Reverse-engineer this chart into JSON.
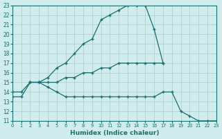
{
  "xlabel": "Humidex (Indice chaleur)",
  "bg_color": "#d0ecec",
  "grid_color": "#a8cccc",
  "line_color": "#1a6e6e",
  "xlim": [
    0,
    23
  ],
  "ylim": [
    11,
    23
  ],
  "xticks": [
    0,
    1,
    2,
    3,
    4,
    5,
    6,
    7,
    8,
    9,
    10,
    11,
    12,
    13,
    14,
    15,
    16,
    17,
    18,
    19,
    20,
    21,
    22,
    23
  ],
  "yticks": [
    11,
    12,
    13,
    14,
    15,
    16,
    17,
    18,
    19,
    20,
    21,
    22,
    23
  ],
  "line1_x": [
    0,
    1,
    2,
    3,
    4,
    5,
    6,
    7,
    8,
    9,
    10,
    11,
    12,
    13,
    14,
    15,
    16,
    17
  ],
  "line1_y": [
    14.0,
    14.0,
    15.0,
    15.0,
    15.5,
    16.5,
    17.0,
    18.0,
    19.0,
    19.5,
    21.5,
    22.0,
    22.5,
    23.0,
    23.0,
    23.0,
    20.5,
    17.0
  ],
  "line2_x": [
    2,
    3,
    4,
    5,
    6,
    7,
    8,
    9,
    10,
    11,
    12,
    13,
    14,
    15,
    16,
    17
  ],
  "line2_y": [
    15.0,
    15.0,
    15.0,
    15.0,
    15.5,
    15.5,
    16.0,
    16.0,
    16.5,
    16.5,
    17.0,
    17.0,
    17.0,
    17.0,
    17.0,
    17.0
  ],
  "line3_x": [
    0,
    1,
    2,
    3,
    4,
    5,
    6,
    7,
    8,
    9,
    10,
    11,
    12,
    13,
    14,
    15,
    16,
    17,
    18,
    19,
    20,
    21,
    22,
    23
  ],
  "line3_y": [
    13.5,
    13.5,
    15.0,
    15.0,
    14.5,
    14.0,
    13.5,
    13.5,
    13.5,
    13.5,
    13.5,
    13.5,
    13.5,
    13.5,
    13.5,
    13.5,
    13.5,
    14.0,
    14.0,
    12.0,
    11.5,
    11.0,
    11.0,
    11.0
  ]
}
